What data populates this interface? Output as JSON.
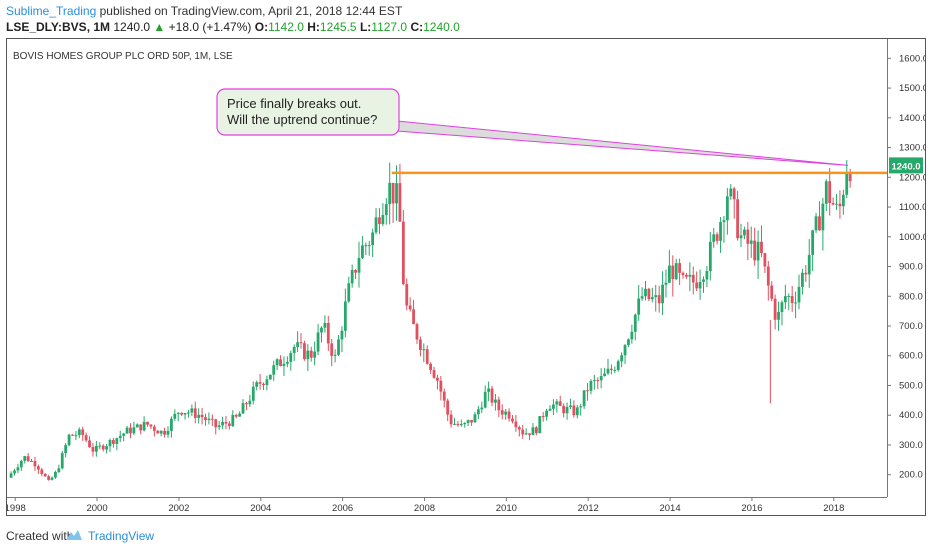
{
  "header": {
    "author": "Sublime_Trading",
    "published_text": "published on TradingView.com, April 21, 2018 12:44 EST",
    "symbol": "LSE_DLY:BVS, 1M",
    "last": "1240.0",
    "change": "+18.0 (+1.47%)",
    "o_label": "O:",
    "o_value": "1142.0",
    "h_label": "H:",
    "h_value": "1245.5",
    "l_label": "L:",
    "l_value": "1127.0",
    "c_label": "C:",
    "c_value": "1240.0"
  },
  "footer": {
    "created_with": "Created with",
    "brand": "TradingView"
  },
  "colors": {
    "up": "#26a86a",
    "down": "#e0505f",
    "resistance": "#f7941d",
    "callout_border": "#e040e0",
    "callout_fill": "#e8f3e4",
    "price_tag": "#26a86a",
    "accent": "#2a8fd8"
  },
  "chart_data": {
    "type": "candlestick",
    "title": "BOVIS HOMES GROUP PLC ORD 50P, 1M, LSE",
    "x_ticks": [
      "1998",
      "2000",
      "2002",
      "2004",
      "2006",
      "2008",
      "2010",
      "2012",
      "2014",
      "2016",
      "2018"
    ],
    "y_ticks": [
      "200.0",
      "300.0",
      "400.0",
      "500.0",
      "600.0",
      "700.0",
      "800.0",
      "900.0",
      "1000.0",
      "1100.0",
      "1200.0",
      "1300.0",
      "1400.0",
      "1500.0",
      "1600.0"
    ],
    "y_range": [
      125,
      1665
    ],
    "x_range": [
      1997.8,
      2019.3
    ],
    "current_price": 1240.0,
    "resistance_level": 1215,
    "resistance_start": 2007.2,
    "annotation": [
      "Price finally breaks out.",
      "Will the uptrend continue?"
    ],
    "anchors": [
      [
        1997.9,
        190
      ],
      [
        1998.3,
        260
      ],
      [
        1998.6,
        235
      ],
      [
        1998.9,
        175
      ],
      [
        1999.1,
        210
      ],
      [
        1999.4,
        330
      ],
      [
        1999.7,
        340
      ],
      [
        2000.0,
        280
      ],
      [
        2000.4,
        310
      ],
      [
        2000.8,
        345
      ],
      [
        2001.3,
        370
      ],
      [
        2001.7,
        340
      ],
      [
        2002.1,
        420
      ],
      [
        2002.6,
        400
      ],
      [
        2003.0,
        360
      ],
      [
        2003.5,
        390
      ],
      [
        2004.0,
        500
      ],
      [
        2004.5,
        570
      ],
      [
        2004.9,
        630
      ],
      [
        2005.3,
        600
      ],
      [
        2005.6,
        700
      ],
      [
        2005.9,
        590
      ],
      [
        2006.2,
        800
      ],
      [
        2006.5,
        950
      ],
      [
        2006.8,
        1000
      ],
      [
        2007.0,
        1100
      ],
      [
        2007.2,
        1170
      ],
      [
        2007.45,
        1120
      ],
      [
        2007.6,
        780
      ],
      [
        2007.8,
        700
      ],
      [
        2008.1,
        610
      ],
      [
        2008.4,
        520
      ],
      [
        2008.7,
        380
      ],
      [
        2009.0,
        360
      ],
      [
        2009.3,
        390
      ],
      [
        2009.6,
        480
      ],
      [
        2009.9,
        420
      ],
      [
        2010.2,
        400
      ],
      [
        2010.5,
        340
      ],
      [
        2010.8,
        350
      ],
      [
        2011.1,
        440
      ],
      [
        2011.5,
        420
      ],
      [
        2011.8,
        410
      ],
      [
        2012.1,
        500
      ],
      [
        2012.4,
        520
      ],
      [
        2012.7,
        560
      ],
      [
        2013.0,
        650
      ],
      [
        2013.4,
        800
      ],
      [
        2013.8,
        780
      ],
      [
        2014.1,
        900
      ],
      [
        2014.4,
        840
      ],
      [
        2014.7,
        850
      ],
      [
        2015.0,
        920
      ],
      [
        2015.3,
        1050
      ],
      [
        2015.5,
        1160
      ],
      [
        2015.8,
        1000
      ],
      [
        2016.1,
        960
      ],
      [
        2016.3,
        940
      ],
      [
        2016.5,
        820
      ],
      [
        2016.7,
        720
      ],
      [
        2016.9,
        800
      ],
      [
        2017.1,
        790
      ],
      [
        2017.4,
        900
      ],
      [
        2017.7,
        1050
      ],
      [
        2017.9,
        1160
      ],
      [
        2018.0,
        1130
      ],
      [
        2018.2,
        1070
      ],
      [
        2018.4,
        1240
      ]
    ]
  }
}
